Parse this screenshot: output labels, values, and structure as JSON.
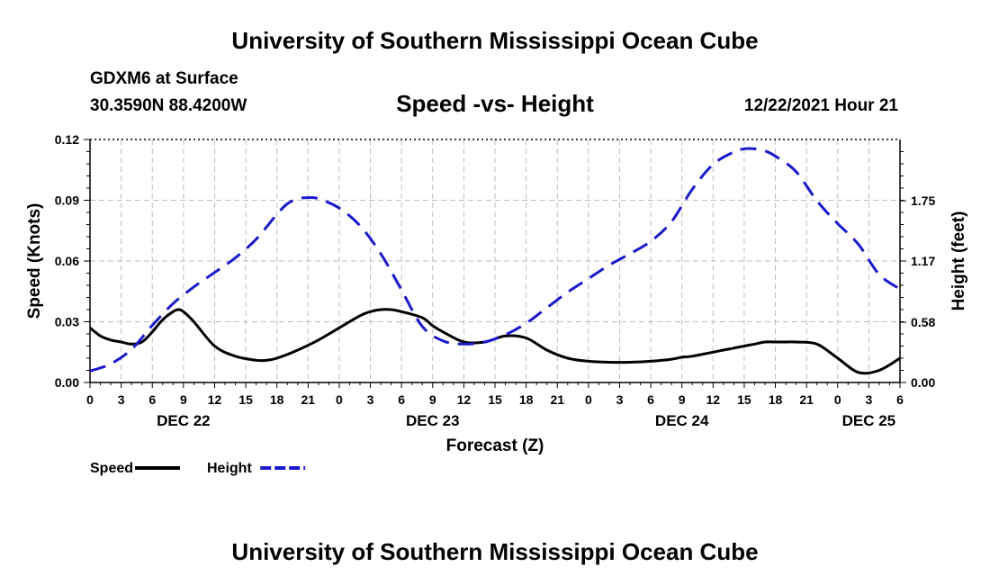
{
  "page": {
    "title_top": "University of Southern Mississippi Ocean Cube",
    "title_bottom": "University of Southern Mississippi Ocean Cube",
    "station": "GDXM6 at Surface",
    "coords": "30.3590N  88.4200W",
    "datetime": "12/22/2021 Hour 21"
  },
  "chart_data": {
    "type": "line",
    "title": "Speed -vs- Height",
    "xlabel": "Forecast (Z)",
    "ylabel": "Speed (Knots)",
    "y2label": "Height (feet)",
    "xlim": [
      0,
      78
    ],
    "ylim": [
      0,
      0.12
    ],
    "y2lim": [
      0,
      2.34
    ],
    "yticks": [
      "0.00",
      "0.03",
      "0.06",
      "0.09",
      "0.12"
    ],
    "y2ticks": [
      "0.00",
      "0.58",
      "1.17",
      "1.75"
    ],
    "y2tick_values": [
      0,
      0.58,
      1.17,
      1.75
    ],
    "xtick_labels": [
      "0",
      "3",
      "6",
      "9",
      "12",
      "15",
      "18",
      "21",
      "0",
      "3",
      "6",
      "9",
      "12",
      "15",
      "18",
      "21",
      "0",
      "3",
      "6",
      "9",
      "12",
      "15",
      "18",
      "21",
      "0",
      "3",
      "6"
    ],
    "day_labels": [
      {
        "text": "DEC 22",
        "hour": 9
      },
      {
        "text": "DEC 23",
        "hour": 33
      },
      {
        "text": "DEC 24",
        "hour": 57
      },
      {
        "text": "DEC 25",
        "hour": 75
      }
    ],
    "grid": true,
    "series": [
      {
        "name": "Speed",
        "axis": "left",
        "color": "#000000",
        "dash": "solid",
        "x": [
          0,
          1,
          2,
          3,
          4,
          5,
          6,
          7,
          8,
          8.5,
          9,
          10,
          12,
          14,
          16,
          17,
          18,
          20,
          22,
          24,
          26,
          27,
          28,
          29,
          30,
          32,
          33,
          34,
          36,
          38,
          40,
          42,
          44,
          46,
          48,
          50,
          52,
          54,
          56,
          57,
          58,
          60,
          61,
          62,
          63,
          64,
          65,
          66,
          67,
          68,
          70,
          72,
          74,
          76,
          78
        ],
        "y": [
          0.027,
          0.023,
          0.021,
          0.02,
          0.019,
          0.02,
          0.025,
          0.031,
          0.035,
          0.036,
          0.035,
          0.03,
          0.018,
          0.013,
          0.011,
          0.011,
          0.012,
          0.016,
          0.021,
          0.027,
          0.033,
          0.035,
          0.036,
          0.036,
          0.035,
          0.032,
          0.028,
          0.025,
          0.02,
          0.02,
          0.023,
          0.022,
          0.016,
          0.012,
          0.0105,
          0.01,
          0.01,
          0.0105,
          0.0115,
          0.0125,
          0.013,
          0.015,
          0.016,
          0.017,
          0.018,
          0.019,
          0.02,
          0.02,
          0.02,
          0.02,
          0.019,
          0.012,
          0.005,
          0.006,
          0.012
        ]
      },
      {
        "name": "Height",
        "axis": "right",
        "color": "#1a1acc",
        "dash": "dashed",
        "x": [
          0,
          2,
          4,
          6,
          8,
          10,
          12,
          14,
          16,
          18,
          19,
          20,
          21,
          22,
          24,
          26,
          28,
          30,
          32,
          34,
          36,
          38,
          40,
          42,
          44,
          46,
          48,
          50,
          52,
          54,
          56,
          58,
          60,
          62,
          63,
          64,
          65,
          66,
          68,
          70,
          72,
          74,
          76,
          78
        ],
        "y": [
          0.11,
          0.18,
          0.32,
          0.55,
          0.76,
          0.92,
          1.06,
          1.2,
          1.38,
          1.62,
          1.72,
          1.77,
          1.78,
          1.77,
          1.68,
          1.51,
          1.24,
          0.89,
          0.54,
          0.4,
          0.37,
          0.39,
          0.46,
          0.57,
          0.72,
          0.87,
          1.0,
          1.13,
          1.24,
          1.36,
          1.55,
          1.86,
          2.1,
          2.22,
          2.25,
          2.25,
          2.23,
          2.18,
          2.03,
          1.75,
          1.53,
          1.33,
          1.04,
          0.9
        ]
      }
    ],
    "legend": [
      {
        "label": "Speed",
        "color": "#000000",
        "dash": "solid"
      },
      {
        "label": "Height",
        "color": "#1a1acc",
        "dash": "dashed"
      }
    ],
    "legend_position": "bottom-left"
  }
}
